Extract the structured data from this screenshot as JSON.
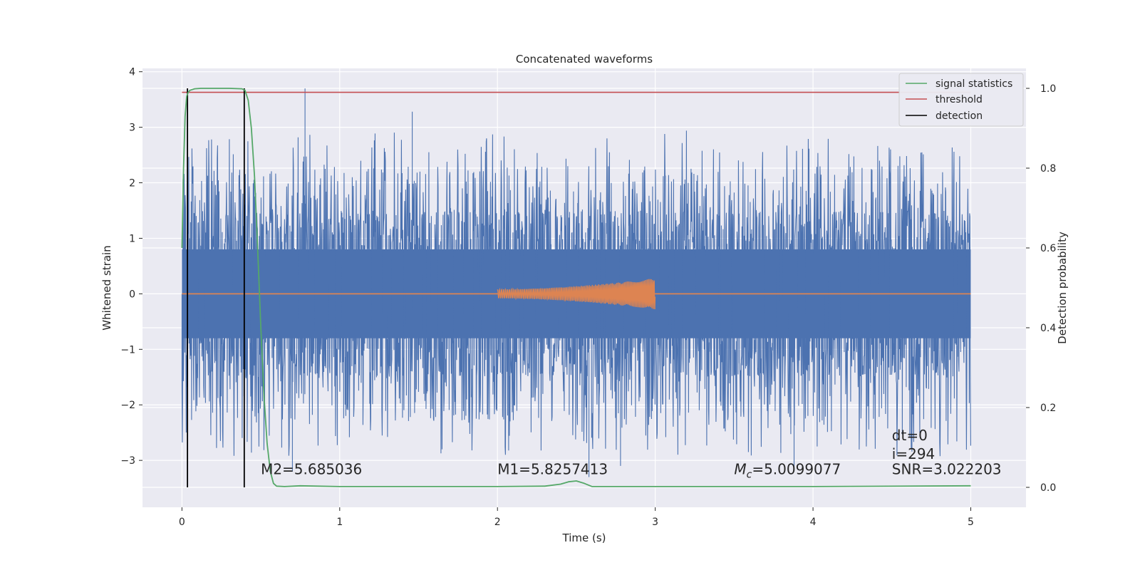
{
  "chart_data": {
    "type": "line",
    "title": "Concatenated waveforms",
    "xlabel": "Time (s)",
    "ylabel": "Whitened strain",
    "y2label": "Detection probability",
    "xlim": [
      -0.25,
      5.35
    ],
    "ylim": [
      -3.845,
      4.06
    ],
    "y2lim": [
      -0.05,
      1.05
    ],
    "x_ticks": [
      0,
      1,
      2,
      3,
      4,
      5
    ],
    "y_ticks": [
      -3,
      -2,
      -1,
      0,
      1,
      2,
      3,
      4
    ],
    "y2_ticks": [
      0.0,
      0.2,
      0.4,
      0.6,
      0.8,
      1.0
    ],
    "x_tick_labels": [
      "0",
      "1",
      "2",
      "3",
      "4",
      "5"
    ],
    "y_tick_labels": [
      "−3",
      "−2",
      "−1",
      "0",
      "1",
      "2",
      "3",
      "4"
    ],
    "y2_tick_labels": [
      "0.0",
      "0.2",
      "0.4",
      "0.6",
      "0.8",
      "1.0"
    ],
    "grid": true,
    "legend_position": "top-right",
    "colors": {
      "background": "#eaeaf2",
      "grid": "#ffffff",
      "strain": "#4c72b0",
      "template": "#dd8452",
      "signal_statistics": "#55a868",
      "threshold": "#c44e52",
      "detection": "#000000"
    },
    "series": [
      {
        "name": "signal statistics",
        "axis": "right",
        "x": [
          0,
          0.01,
          0.02,
          0.03,
          0.04,
          0.05,
          0.08,
          0.12,
          0.2,
          0.3,
          0.38,
          0.4,
          0.42,
          0.44,
          0.46,
          0.48,
          0.5,
          0.52,
          0.54,
          0.56,
          0.58,
          0.6,
          0.65,
          0.75,
          1.0,
          1.5,
          2.0,
          2.3,
          2.4,
          2.45,
          2.5,
          2.55,
          2.6,
          3.0,
          4.0,
          5.0
        ],
        "y": [
          0.6,
          0.8,
          0.93,
          0.98,
          0.99,
          0.995,
          0.999,
          1.0,
          1.0,
          1.0,
          0.999,
          0.995,
          0.97,
          0.9,
          0.78,
          0.6,
          0.4,
          0.23,
          0.11,
          0.04,
          0.01,
          0.003,
          0.002,
          0.004,
          0.002,
          0.002,
          0.002,
          0.003,
          0.008,
          0.014,
          0.016,
          0.01,
          0.002,
          0.002,
          0.002,
          0.004
        ]
      },
      {
        "name": "threshold",
        "axis": "right",
        "x": [
          0,
          5
        ],
        "y": [
          0.99,
          0.99
        ]
      },
      {
        "name": "detection",
        "axis": "right",
        "x": [
          0.035,
          0.395
        ],
        "y_range": [
          0,
          1
        ]
      }
    ],
    "strain": {
      "axis": "left",
      "x_range": [
        0,
        5
      ],
      "core_amplitude": 0.8,
      "spike_range": [
        -3.3,
        3.7
      ]
    },
    "template": {
      "axis": "left",
      "x_range": [
        0,
        5
      ],
      "chirp_start": 2.0,
      "chirp_end": 3.0,
      "amplitude_range": [
        0.08,
        0.28
      ]
    },
    "annotations": [
      {
        "text": "M2=5.685036",
        "x": 0.5,
        "y": -3.25
      },
      {
        "text": "M1=5.8257413",
        "x": 2.0,
        "y": -3.25
      },
      {
        "mc_symbol": "M",
        "mc_sub": "c",
        "text": "=5.0099077",
        "x": 3.5,
        "y": -3.25
      },
      {
        "text": "SNR=3.022203",
        "x": 4.5,
        "y": -3.25
      },
      {
        "text": "i=294",
        "x": 4.5,
        "y": -2.97
      },
      {
        "text": "dt=0",
        "x": 4.5,
        "y": -2.64
      }
    ]
  }
}
